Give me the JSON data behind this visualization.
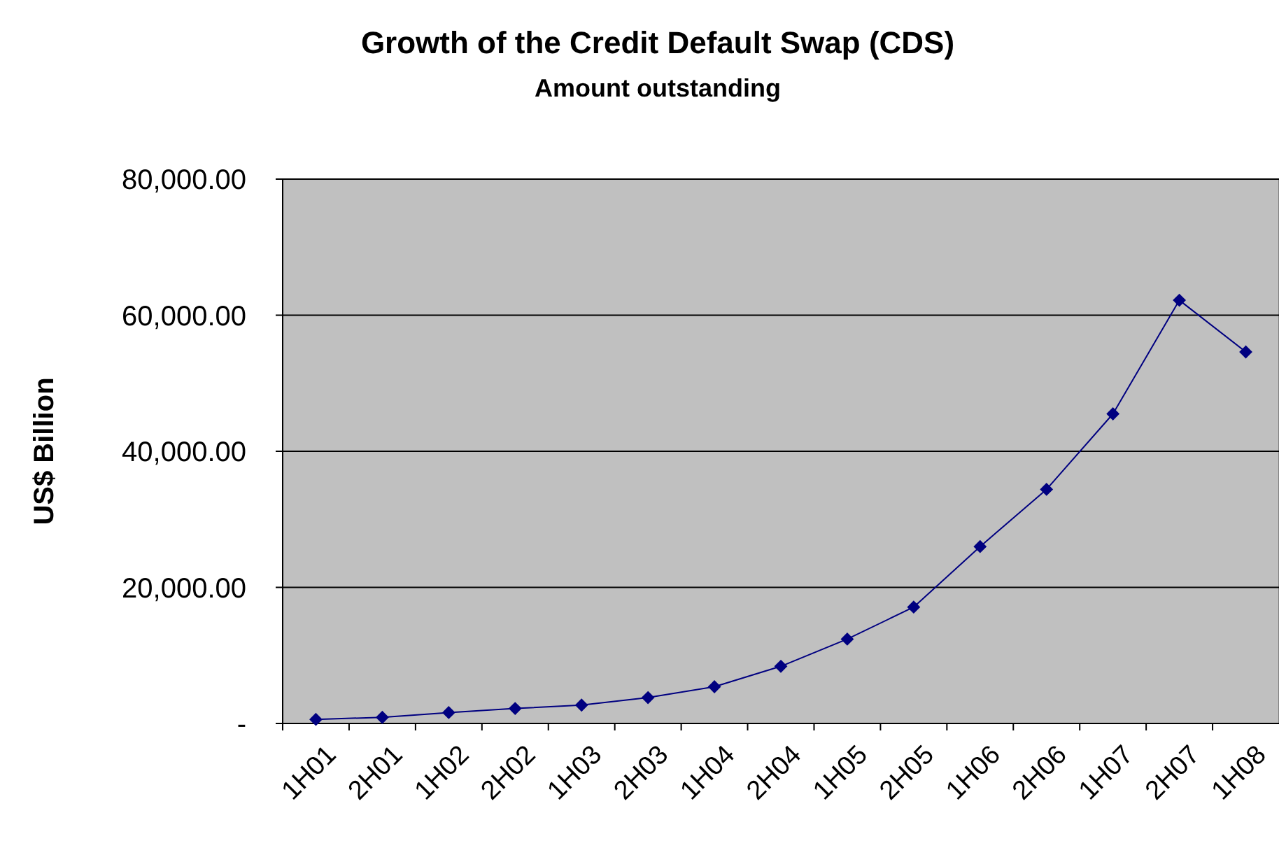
{
  "chart_data": {
    "type": "line",
    "title": "Growth of the Credit Default Swap (CDS)",
    "subtitle": "Amount outstanding",
    "ylabel": "US$ Billion",
    "categories": [
      "1H01",
      "2H01",
      "1H02",
      "2H02",
      "1H03",
      "2H03",
      "1H04",
      "2H04",
      "1H05",
      "2H05",
      "1H06",
      "2H06",
      "1H07",
      "2H07",
      "1H08"
    ],
    "series": [
      {
        "color": "#000080",
        "values": [
          600,
          900,
          1600,
          2200,
          2700,
          3800,
          5400,
          8400,
          12400,
          17100,
          26000,
          34400,
          45500,
          62200,
          54600
        ]
      }
    ],
    "ylim": [
      0,
      80000
    ],
    "yticks": [
      {
        "value": 0,
        "label": "-"
      },
      {
        "value": 20000,
        "label": "20,000.00"
      },
      {
        "value": 40000,
        "label": "40,000.00"
      },
      {
        "value": 60000,
        "label": "60,000.00"
      },
      {
        "value": 80000,
        "label": "80,000.00"
      }
    ],
    "grid": "y",
    "marker": "diamond",
    "line_style": "solid"
  }
}
